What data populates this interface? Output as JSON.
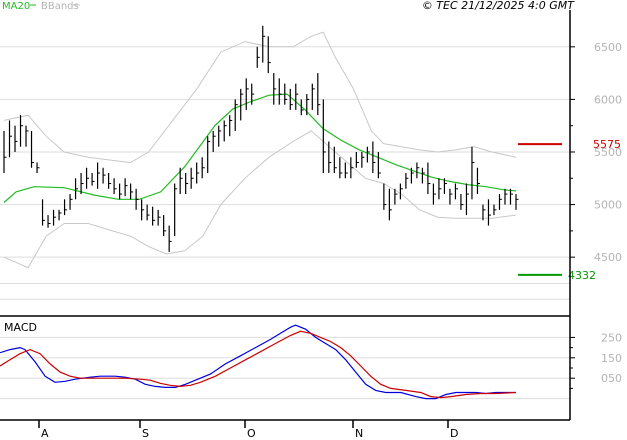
{
  "header": {
    "legend_ma": "MA20",
    "legend_bb": "BBands",
    "copyright": "© TEC 21/12/2025 4:0 GMT",
    "ma_color": "#22bb22",
    "bb_color": "#c8c8c8"
  },
  "chart_data": [
    {
      "type": "line",
      "name": "price",
      "ylim": [
        3950,
        6850
      ],
      "yticks": [
        "6500",
        "6000",
        "5500",
        "5000",
        "4500"
      ],
      "ytick_values": [
        6500,
        6000,
        5500,
        5000,
        4500
      ],
      "grid": true,
      "x_count": 94,
      "ma20": [
        [
          0,
          5020
        ],
        [
          4,
          5120
        ],
        [
          10,
          5170
        ],
        [
          20,
          5160
        ],
        [
          30,
          5090
        ],
        [
          38,
          5050
        ],
        [
          45,
          5050
        ],
        [
          52,
          5120
        ],
        [
          60,
          5360
        ],
        [
          70,
          5750
        ],
        [
          76,
          5910
        ],
        [
          82,
          5980
        ],
        [
          88,
          6040
        ],
        [
          94,
          6050
        ],
        [
          100,
          5900
        ],
        [
          106,
          5720
        ],
        [
          112,
          5610
        ],
        [
          118,
          5520
        ],
        [
          124,
          5450
        ],
        [
          130,
          5380
        ],
        [
          136,
          5320
        ],
        [
          142,
          5260
        ],
        [
          148,
          5220
        ],
        [
          154,
          5190
        ],
        [
          160,
          5170
        ],
        [
          166,
          5140
        ],
        [
          170,
          5130
        ]
      ],
      "bb_upper": [
        [
          0,
          5800
        ],
        [
          8,
          5850
        ],
        [
          14,
          5650
        ],
        [
          20,
          5500
        ],
        [
          28,
          5450
        ],
        [
          36,
          5420
        ],
        [
          42,
          5400
        ],
        [
          48,
          5500
        ],
        [
          56,
          5800
        ],
        [
          64,
          6100
        ],
        [
          72,
          6450
        ],
        [
          80,
          6550
        ],
        [
          88,
          6500
        ],
        [
          96,
          6500
        ],
        [
          102,
          6600
        ],
        [
          106,
          6640
        ],
        [
          110,
          6400
        ],
        [
          116,
          6100
        ],
        [
          122,
          5700
        ],
        [
          126,
          5580
        ],
        [
          132,
          5550
        ],
        [
          138,
          5520
        ],
        [
          144,
          5500
        ],
        [
          150,
          5520
        ],
        [
          156,
          5550
        ],
        [
          162,
          5500
        ],
        [
          170,
          5450
        ]
      ],
      "bb_lower": [
        [
          0,
          4500
        ],
        [
          8,
          4400
        ],
        [
          14,
          4700
        ],
        [
          20,
          4820
        ],
        [
          28,
          4820
        ],
        [
          36,
          4750
        ],
        [
          42,
          4700
        ],
        [
          48,
          4600
        ],
        [
          54,
          4530
        ],
        [
          60,
          4560
        ],
        [
          66,
          4700
        ],
        [
          72,
          5000
        ],
        [
          80,
          5250
        ],
        [
          88,
          5450
        ],
        [
          96,
          5600
        ],
        [
          102,
          5700
        ],
        [
          108,
          5550
        ],
        [
          114,
          5400
        ],
        [
          120,
          5250
        ],
        [
          126,
          5200
        ],
        [
          132,
          5100
        ],
        [
          138,
          4950
        ],
        [
          144,
          4880
        ],
        [
          150,
          4870
        ],
        [
          156,
          4870
        ],
        [
          162,
          4870
        ],
        [
          170,
          4900
        ]
      ],
      "bars": [
        [
          5700,
          5300,
          5450
        ],
        [
          5800,
          5450,
          5650
        ],
        [
          5750,
          5500,
          5600
        ],
        [
          5850,
          5550,
          5750
        ],
        [
          5750,
          5550,
          5700
        ],
        [
          5700,
          5350,
          5400
        ],
        [
          5400,
          5300,
          5350
        ],
        [
          5050,
          4800,
          4850
        ],
        [
          4900,
          4780,
          4820
        ],
        [
          4950,
          4800,
          4880
        ],
        [
          4950,
          4850,
          4920
        ],
        [
          5050,
          4900,
          4950
        ],
        [
          5100,
          4950,
          5050
        ],
        [
          5250,
          5050,
          5150
        ],
        [
          5300,
          5100,
          5200
        ],
        [
          5350,
          5150,
          5250
        ],
        [
          5300,
          5180,
          5220
        ],
        [
          5400,
          5150,
          5300
        ],
        [
          5350,
          5200,
          5280
        ],
        [
          5300,
          5150,
          5200
        ],
        [
          5250,
          5100,
          5150
        ],
        [
          5200,
          5050,
          5100
        ],
        [
          5250,
          5080,
          5180
        ],
        [
          5200,
          5050,
          5120
        ],
        [
          5150,
          4950,
          5050
        ],
        [
          5050,
          4850,
          4950
        ],
        [
          5000,
          4850,
          4900
        ],
        [
          4980,
          4800,
          4850
        ],
        [
          4950,
          4800,
          4880
        ],
        [
          4900,
          4700,
          4750
        ],
        [
          4800,
          4550,
          4650
        ],
        [
          5200,
          4700,
          5150
        ],
        [
          5350,
          5100,
          5250
        ],
        [
          5300,
          5100,
          5200
        ],
        [
          5350,
          5150,
          5250
        ],
        [
          5400,
          5200,
          5300
        ],
        [
          5450,
          5250,
          5350
        ],
        [
          5650,
          5300,
          5600
        ],
        [
          5700,
          5500,
          5650
        ],
        [
          5750,
          5550,
          5700
        ],
        [
          5800,
          5600,
          5750
        ],
        [
          5850,
          5650,
          5800
        ],
        [
          6000,
          5700,
          5950
        ],
        [
          6100,
          5800,
          6050
        ],
        [
          6200,
          5900,
          6100
        ],
        [
          6150,
          5950,
          6050
        ],
        [
          6500,
          6300,
          6400
        ],
        [
          6700,
          6350,
          6600
        ],
        [
          6600,
          6250,
          6350
        ],
        [
          6250,
          5950,
          6100
        ],
        [
          6200,
          5950,
          6050
        ],
        [
          6150,
          5950,
          6000
        ],
        [
          6100,
          5900,
          5950
        ],
        [
          6150,
          5900,
          6050
        ],
        [
          6000,
          5850,
          5900
        ],
        [
          6050,
          5850,
          6000
        ],
        [
          6150,
          5900,
          6100
        ],
        [
          6250,
          5850,
          5950
        ],
        [
          6000,
          5300,
          5500
        ],
        [
          5600,
          5300,
          5400
        ],
        [
          5550,
          5300,
          5350
        ],
        [
          5450,
          5250,
          5300
        ],
        [
          5400,
          5250,
          5300
        ],
        [
          5450,
          5250,
          5350
        ],
        [
          5500,
          5350,
          5400
        ],
        [
          5500,
          5350,
          5450
        ],
        [
          5550,
          5400,
          5500
        ],
        [
          5600,
          5300,
          5400
        ],
        [
          5500,
          5250,
          5300
        ],
        [
          5200,
          4950,
          5000
        ],
        [
          5150,
          4850,
          4950
        ],
        [
          5150,
          5000,
          5100
        ],
        [
          5200,
          5050,
          5150
        ],
        [
          5300,
          5150,
          5250
        ],
        [
          5350,
          5200,
          5300
        ],
        [
          5400,
          5250,
          5350
        ],
        [
          5350,
          5200,
          5300
        ],
        [
          5400,
          5100,
          5200
        ],
        [
          5200,
          5000,
          5100
        ],
        [
          5250,
          5050,
          5150
        ],
        [
          5250,
          5100,
          5200
        ],
        [
          5150,
          5000,
          5100
        ],
        [
          5200,
          5050,
          5150
        ],
        [
          5100,
          4950,
          5000
        ],
        [
          5200,
          4900,
          5100
        ],
        [
          5550,
          5050,
          5400
        ],
        [
          5350,
          5100,
          5200
        ],
        [
          5000,
          4850,
          4950
        ],
        [
          5050,
          4800,
          4900
        ],
        [
          5000,
          4900,
          4950
        ],
        [
          5100,
          4950,
          5050
        ],
        [
          5150,
          5000,
          5100
        ],
        [
          5150,
          5000,
          5100
        ],
        [
          5100,
          4950,
          5050
        ]
      ]
    },
    {
      "type": "line",
      "name": "MACD",
      "title": "MACD",
      "ylim": [
        -150,
        350
      ],
      "yticks": [
        "250",
        "150",
        "050"
      ],
      "ytick_values": [
        250,
        150,
        50
      ],
      "grid": true,
      "series": [
        {
          "color": "#0000dd",
          "values": [
            [
              0,
              175
            ],
            [
              4,
              190
            ],
            [
              8,
              200
            ],
            [
              10,
              190
            ],
            [
              14,
              130
            ],
            [
              18,
              60
            ],
            [
              22,
              30
            ],
            [
              26,
              35
            ],
            [
              30,
              45
            ],
            [
              36,
              55
            ],
            [
              40,
              60
            ],
            [
              46,
              60
            ],
            [
              50,
              55
            ],
            [
              54,
              45
            ],
            [
              58,
              20
            ],
            [
              62,
              10
            ],
            [
              66,
              5
            ],
            [
              70,
              5
            ],
            [
              74,
              20
            ],
            [
              78,
              40
            ],
            [
              84,
              70
            ],
            [
              90,
              120
            ],
            [
              96,
              160
            ],
            [
              102,
              200
            ],
            [
              108,
              240
            ],
            [
              112,
              270
            ],
            [
              116,
              300
            ],
            [
              118,
              310
            ],
            [
              122,
              290
            ],
            [
              126,
              250
            ],
            [
              130,
              220
            ],
            [
              134,
              190
            ],
            [
              138,
              140
            ],
            [
              142,
              80
            ],
            [
              146,
              20
            ],
            [
              150,
              -10
            ],
            [
              154,
              -20
            ],
            [
              160,
              -20
            ],
            [
              166,
              -40
            ],
            [
              170,
              -50
            ],
            [
              174,
              -50
            ],
            [
              178,
              -30
            ],
            [
              182,
              -20
            ],
            [
              186,
              -20
            ],
            [
              190,
              -20
            ],
            [
              194,
              -25
            ],
            [
              198,
              -20
            ],
            [
              202,
              -20
            ],
            [
              206,
              -20
            ]
          ]
        },
        {
          "color": "#cc0000",
          "values": [
            [
              0,
              110
            ],
            [
              4,
              140
            ],
            [
              8,
              170
            ],
            [
              12,
              190
            ],
            [
              16,
              170
            ],
            [
              20,
              120
            ],
            [
              24,
              80
            ],
            [
              28,
              60
            ],
            [
              32,
              50
            ],
            [
              38,
              50
            ],
            [
              44,
              50
            ],
            [
              50,
              50
            ],
            [
              56,
              45
            ],
            [
              60,
              40
            ],
            [
              64,
              25
            ],
            [
              68,
              15
            ],
            [
              72,
              10
            ],
            [
              76,
              15
            ],
            [
              80,
              30
            ],
            [
              86,
              60
            ],
            [
              92,
              100
            ],
            [
              98,
              140
            ],
            [
              104,
              180
            ],
            [
              110,
              220
            ],
            [
              116,
              260
            ],
            [
              120,
              280
            ],
            [
              124,
              270
            ],
            [
              128,
              250
            ],
            [
              132,
              230
            ],
            [
              136,
              200
            ],
            [
              140,
              160
            ],
            [
              144,
              110
            ],
            [
              148,
              60
            ],
            [
              152,
              20
            ],
            [
              156,
              0
            ],
            [
              162,
              -10
            ],
            [
              168,
              -20
            ],
            [
              172,
              -40
            ],
            [
              176,
              -45
            ],
            [
              180,
              -40
            ],
            [
              186,
              -30
            ],
            [
              192,
              -25
            ],
            [
              198,
              -25
            ],
            [
              206,
              -20
            ]
          ]
        }
      ]
    }
  ],
  "x_axis": {
    "labels": [
      "A",
      "S",
      "O",
      "N",
      "D"
    ],
    "label_index": [
      0,
      20,
      42,
      65,
      83
    ]
  },
  "levels": [
    {
      "label": "5575",
      "value": 5575,
      "color": "#cc0000"
    },
    {
      "label": "4332",
      "value": 4332,
      "color": "#009900"
    }
  ]
}
